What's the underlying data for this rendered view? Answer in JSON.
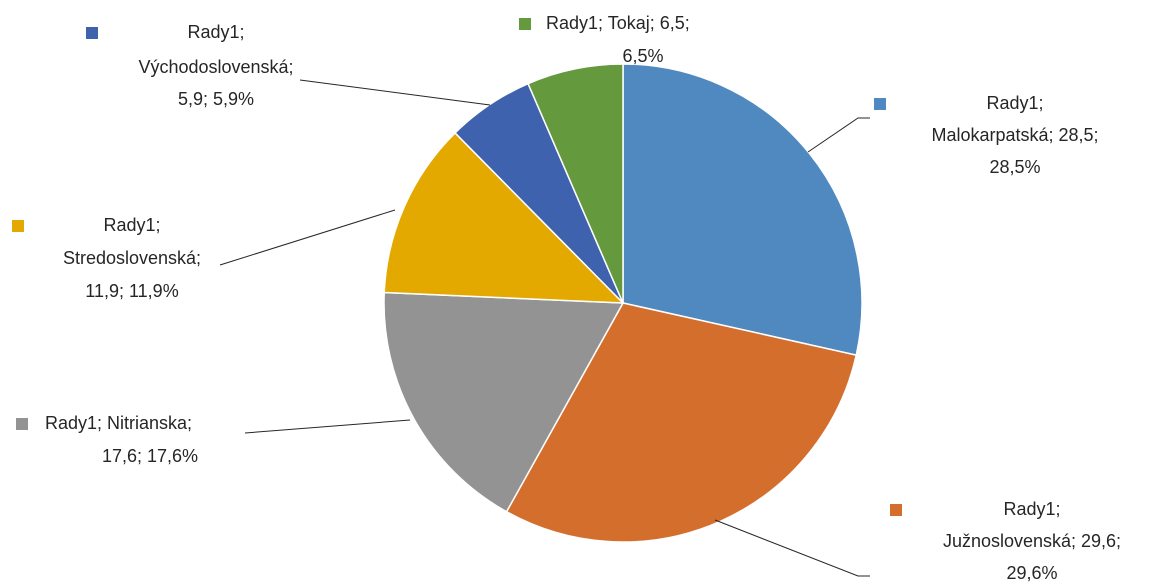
{
  "chart_data": {
    "type": "pie",
    "series_name": "Rady1",
    "categories": [
      "Malokarpatská",
      "Južnoslovenská",
      "Nitrianska",
      "Stredoslovenská",
      "Východoslovenská",
      "Tokaj"
    ],
    "values": [
      28.5,
      29.6,
      17.6,
      11.9,
      5.9,
      6.5
    ],
    "colors": [
      "#5089bf",
      "#d46e2c",
      "#939393",
      "#e3a900",
      "#3f62ae",
      "#64993d"
    ],
    "data_labels": [
      [
        "Rady1;",
        "Malokarpatská; 28,5;",
        "28,5%"
      ],
      [
        "Rady1;",
        "Južnoslovenská; 29,6;",
        "29,6%"
      ],
      [
        "Rady1; Nitrianska;",
        "17,6; 17,6%"
      ],
      [
        "Rady1;",
        "Stredoslovenská;",
        "11,9; 11,9%"
      ],
      [
        "Rady1;",
        "Východoslovenská;",
        "5,9; 5,9%"
      ],
      [
        "Rady1; Tokaj; 6,5;",
        "6,5%"
      ]
    ]
  }
}
